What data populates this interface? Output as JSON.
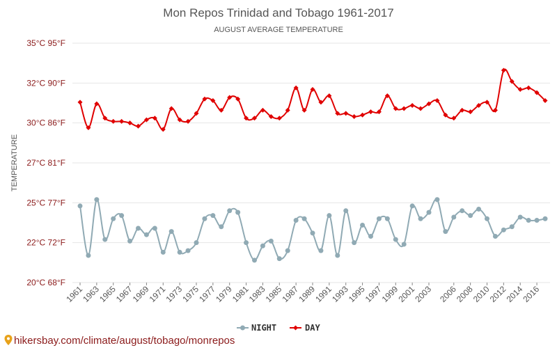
{
  "chart_data": {
    "type": "line",
    "title": "Mon Repos Trinidad and Tobago 1961-2017",
    "subtitle": "AUGUST AVERAGE TEMPERATURE",
    "ylabel": "TEMPERATURE",
    "xlabel": "",
    "ylim": [
      20,
      35
    ],
    "y_ticks": [
      {
        "value": 20,
        "label": "20°C 68°F"
      },
      {
        "value": 22.5,
        "label": "22°C 72°F"
      },
      {
        "value": 25,
        "label": "25°C 77°F"
      },
      {
        "value": 27.5,
        "label": "27°C 81°F"
      },
      {
        "value": 30,
        "label": "30°C 86°F"
      },
      {
        "value": 32.5,
        "label": "32°C 90°F"
      },
      {
        "value": 35,
        "label": "35°C 95°F"
      }
    ],
    "x_tick_labels": [
      "1961",
      "1963",
      "1965",
      "1967",
      "1969",
      "1971",
      "1973",
      "1975",
      "1977",
      "1979",
      "1981",
      "1983",
      "1985",
      "1987",
      "1989",
      "1991",
      "1993",
      "1995",
      "1997",
      "1999",
      "2001",
      "2003",
      "2006",
      "2008",
      "2010",
      "2012",
      "2014",
      "2016"
    ],
    "x": [
      1961,
      1962,
      1963,
      1964,
      1965,
      1966,
      1967,
      1968,
      1969,
      1970,
      1971,
      1972,
      1973,
      1974,
      1975,
      1976,
      1977,
      1978,
      1979,
      1980,
      1981,
      1982,
      1983,
      1984,
      1985,
      1986,
      1987,
      1988,
      1989,
      1990,
      1991,
      1992,
      1993,
      1994,
      1995,
      1996,
      1997,
      1998,
      1999,
      2000,
      2001,
      2002,
      2003,
      2004,
      2005,
      2006,
      2007,
      2008,
      2009,
      2010,
      2011,
      2012,
      2013,
      2014,
      2015,
      2016,
      2017
    ],
    "grid": true,
    "legend_position": "bottom-center",
    "series": [
      {
        "name": "NIGHT",
        "color": "#90aab4",
        "marker": "circle",
        "values": [
          24.8,
          21.7,
          25.2,
          22.7,
          24.0,
          24.2,
          22.6,
          23.4,
          23.0,
          23.4,
          21.9,
          23.2,
          21.9,
          22.0,
          22.5,
          24.0,
          24.2,
          23.5,
          24.5,
          24.4,
          22.5,
          21.4,
          22.3,
          22.6,
          21.5,
          22.0,
          23.9,
          24.0,
          23.1,
          22.0,
          24.2,
          21.7,
          24.5,
          22.5,
          23.6,
          22.9,
          24.0,
          24.0,
          22.7,
          22.4,
          24.8,
          24.0,
          24.4,
          25.2,
          23.2,
          24.1,
          24.5,
          24.2,
          24.6,
          24.0,
          22.9,
          23.3,
          23.5,
          24.1,
          23.9,
          23.9,
          24.0
        ]
      },
      {
        "name": "DAY",
        "color": "#e00000",
        "marker": "diamond",
        "values": [
          31.3,
          29.7,
          31.2,
          30.3,
          30.1,
          30.1,
          30.0,
          29.8,
          30.2,
          30.3,
          29.6,
          30.9,
          30.2,
          30.1,
          30.6,
          31.5,
          31.4,
          30.8,
          31.6,
          31.5,
          30.3,
          30.3,
          30.8,
          30.4,
          30.3,
          30.8,
          32.2,
          30.8,
          32.1,
          31.3,
          31.7,
          30.6,
          30.6,
          30.4,
          30.5,
          30.7,
          30.7,
          31.7,
          30.9,
          30.9,
          31.1,
          30.9,
          31.2,
          31.4,
          30.5,
          30.3,
          30.8,
          30.7,
          31.1,
          31.3,
          30.8,
          33.3,
          32.6,
          32.1,
          32.2,
          31.9,
          31.4
        ]
      }
    ]
  },
  "legend": {
    "night_label": "NIGHT",
    "day_label": "DAY"
  },
  "watermark": "hikersbay.com/climate/august/tobago/monrepos"
}
